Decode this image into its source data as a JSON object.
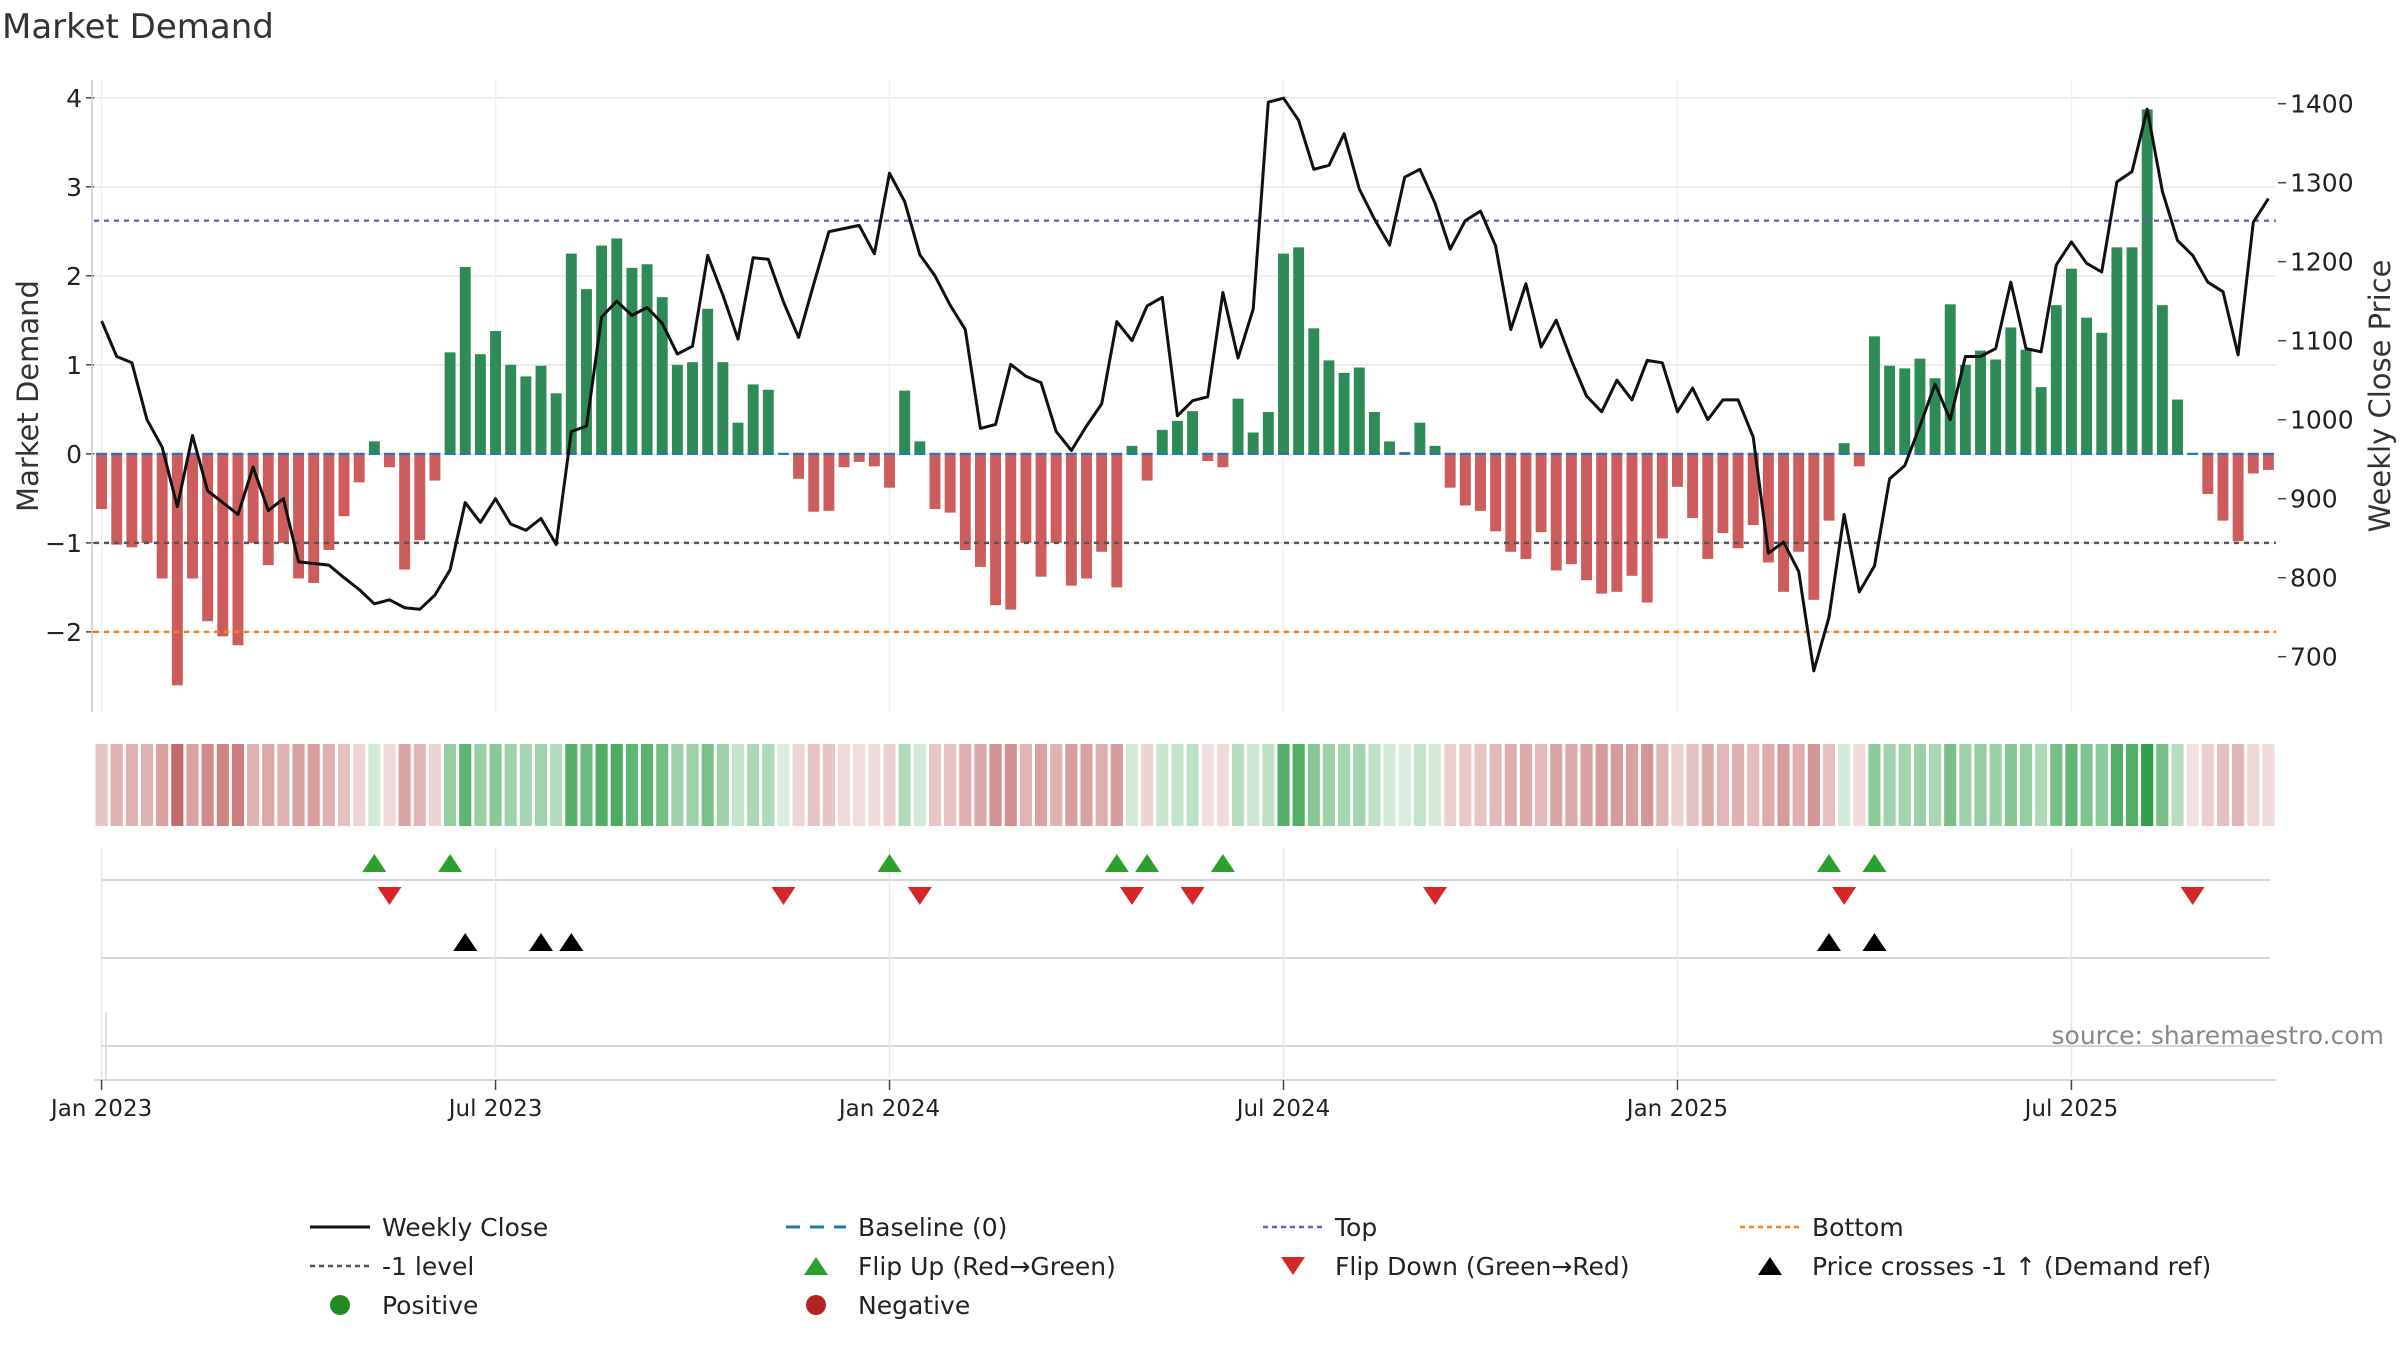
{
  "title": "Market Demand",
  "source_note": "source: sharemaestro.com",
  "colors": {
    "positive": "#2e8b57",
    "negative": "#cd5c5c",
    "price": "#111111",
    "baseline": "#1f77b4",
    "top": "#6a5acd",
    "bottom": "#ff7f0e",
    "minus_one": "#555555",
    "flip_up": "#2ca02c",
    "flip_down": "#d62728",
    "cross": "#000000",
    "grid": "#e6e6e6"
  },
  "legend": [
    {
      "label": "Weekly Close",
      "icon": "solid-line-icon",
      "color": "#111111"
    },
    {
      "label": "Baseline (0)",
      "icon": "dashed-line-icon",
      "color": "#1f77b4"
    },
    {
      "label": "Top",
      "icon": "dotted-line-icon",
      "color": "#6a5acd"
    },
    {
      "label": "Bottom",
      "icon": "dotted-line-icon",
      "color": "#ff7f0e"
    },
    {
      "label": "-1 level",
      "icon": "dotted-line-icon",
      "color": "#555555"
    },
    {
      "label": "Flip Up (Red→Green)",
      "icon": "triangle-up-icon",
      "color": "#2ca02c"
    },
    {
      "label": "Flip Down (Green→Red)",
      "icon": "triangle-down-icon",
      "color": "#d62728"
    },
    {
      "label": "Price crosses -1 ↑ (Demand ref)",
      "icon": "triangle-up-icon",
      "color": "#000000"
    },
    {
      "label": "Positive",
      "icon": "circle-icon",
      "color": "#228b22"
    },
    {
      "label": "Negative",
      "icon": "circle-icon",
      "color": "#b22222"
    }
  ],
  "chart_data": {
    "type": "bar+line",
    "title": "Market Demand",
    "ylabel_left": "Market Demand",
    "ylabel_right": "Weekly Close Price",
    "y_left_range": [
      -2.9,
      4.2
    ],
    "y_left_ticks": [
      -2,
      -1,
      0,
      1,
      2,
      3,
      4
    ],
    "y_left_tick_labels": [
      "−2",
      "−1",
      "0",
      "1",
      "2",
      "3",
      "4"
    ],
    "y_right_range": [
      630,
      1430
    ],
    "y_right_ticks": [
      700,
      800,
      900,
      1000,
      1100,
      1200,
      1300,
      1400
    ],
    "y_right_tick_labels": [
      "700",
      "800",
      "900",
      "1000",
      "1100",
      "1200",
      "1300",
      "1400"
    ],
    "x_tick_labels": [
      "Jan 2023",
      "Jul 2023",
      "Jan 2024",
      "Jul 2024",
      "Jan 2025",
      "Jul 2025"
    ],
    "x_tick_weeks": [
      0.5,
      26.5,
      52.5,
      78.5,
      104.5,
      130.5
    ],
    "top_level": 2.62,
    "bottom_level": -2.0,
    "minus_one_level": -1.0,
    "baseline": 0,
    "demand": [
      -0.62,
      -1.02,
      -1.05,
      -1.0,
      -1.4,
      -2.6,
      -1.4,
      -1.88,
      -2.05,
      -2.15,
      -1.0,
      -1.25,
      -1.0,
      -1.4,
      -1.45,
      -1.08,
      -0.7,
      -0.32,
      0.14,
      -0.15,
      -1.3,
      -0.97,
      -0.3,
      1.14,
      2.1,
      1.12,
      1.38,
      1.0,
      0.87,
      0.99,
      0.68,
      2.25,
      1.85,
      2.34,
      2.42,
      2.09,
      2.13,
      1.76,
      1.0,
      1.03,
      1.63,
      1.03,
      0.35,
      0.78,
      0.72,
      0.0,
      -0.28,
      -0.65,
      -0.64,
      -0.15,
      -0.09,
      -0.14,
      -0.38,
      0.71,
      0.14,
      -0.62,
      -0.66,
      -1.08,
      -1.27,
      -1.7,
      -1.75,
      -1.0,
      -1.38,
      -1.0,
      -1.48,
      -1.4,
      -1.1,
      -1.5,
      0.09,
      -0.3,
      0.27,
      0.37,
      0.48,
      -0.08,
      -0.15,
      0.62,
      0.24,
      0.47,
      2.25,
      2.32,
      1.41,
      1.05,
      0.91,
      0.97,
      0.47,
      0.14,
      0.02,
      0.35,
      0.09,
      -0.38,
      -0.58,
      -0.64,
      -0.87,
      -1.1,
      -1.18,
      -0.88,
      -1.31,
      -1.24,
      -1.42,
      -1.57,
      -1.55,
      -1.37,
      -1.67,
      -0.95,
      -0.37,
      -0.72,
      -1.18,
      -0.89,
      -1.06,
      -0.8,
      -1.22,
      -1.55,
      -1.1,
      -1.64,
      -0.75,
      0.12,
      -0.14,
      1.32,
      0.99,
      0.96,
      1.07,
      0.85,
      1.68,
      1.0,
      1.16,
      1.06,
      1.42,
      1.17,
      0.75,
      1.67,
      2.08,
      1.53,
      1.36,
      2.32,
      2.32,
      3.87,
      1.67,
      0.61,
      -0.01,
      -0.45,
      -0.75,
      -0.98,
      -0.22,
      -0.18
    ],
    "close": [
      1125,
      1080,
      1072,
      1000,
      965,
      890,
      980,
      910,
      895,
      880,
      940,
      885,
      900,
      820,
      818,
      816,
      800,
      785,
      767,
      772,
      762,
      760,
      778,
      810,
      895,
      870,
      900,
      868,
      860,
      875,
      842,
      985,
      992,
      1130,
      1150,
      1132,
      1142,
      1122,
      1083,
      1093,
      1208,
      1158,
      1102,
      1205,
      1203,
      1149,
      1104,
      1172,
      1238,
      1242,
      1246,
      1210,
      1312,
      1276,
      1209,
      1182,
      1145,
      1114,
      989,
      994,
      1070,
      1055,
      1047,
      985,
      961,
      992,
      1020,
      1124,
      1100,
      1144,
      1155,
      1005,
      1024,
      1029,
      1161,
      1078,
      1140,
      1402,
      1407,
      1379,
      1317,
      1322,
      1362,
      1292,
      1254,
      1221,
      1307,
      1317,
      1274,
      1216,
      1252,
      1264,
      1220,
      1114,
      1172,
      1092,
      1126,
      1075,
      1030,
      1010,
      1050,
      1025,
      1075,
      1072,
      1010,
      1040,
      1000,
      1025,
      1025,
      978,
      831,
      845,
      808,
      682,
      750,
      880,
      782,
      815,
      925,
      942,
      992,
      1045,
      1000,
      1080,
      1080,
      1090,
      1174,
      1090,
      1086,
      1196,
      1225,
      1198,
      1187,
      1301,
      1314,
      1393,
      1289,
      1227,
      1208,
      1174,
      1162,
      1082,
      1250,
      1280
    ],
    "flip_up_weeks": [
      18,
      23,
      52,
      67,
      69,
      74,
      114,
      117
    ],
    "flip_down_weeks": [
      19,
      45,
      54,
      68,
      72,
      88,
      115,
      138
    ],
    "price_cross_weeks": [
      24,
      29,
      31,
      114,
      117
    ]
  }
}
